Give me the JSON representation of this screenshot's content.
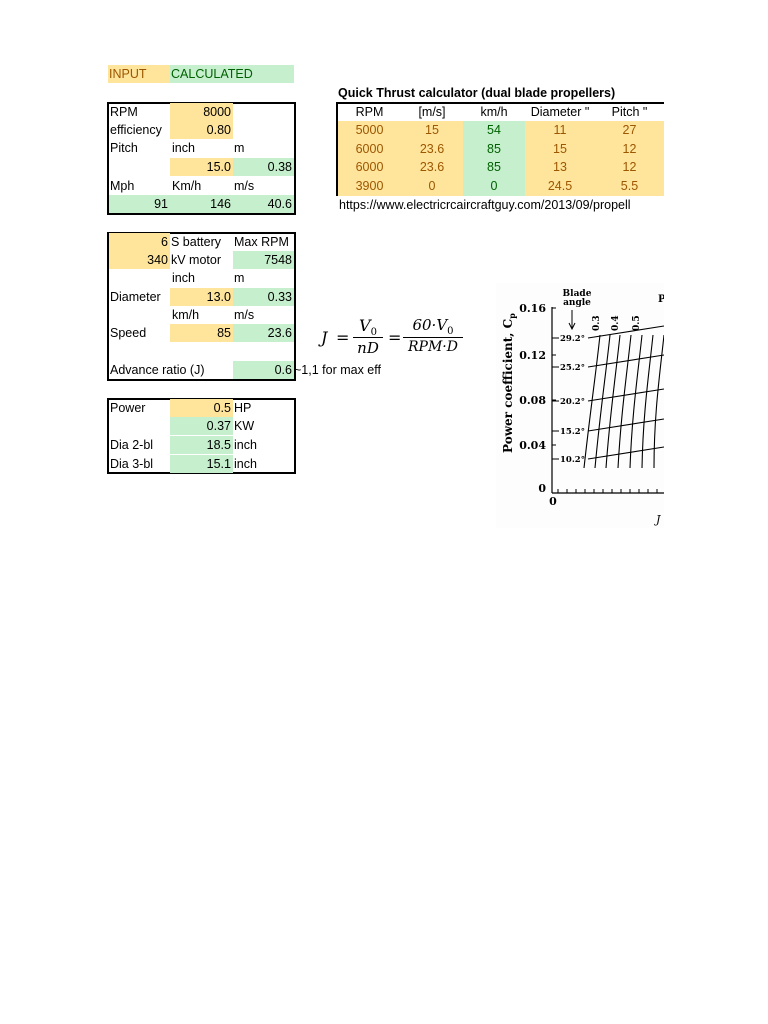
{
  "legend": {
    "input": "INPUT",
    "calculated": "CALCULATED"
  },
  "box1": {
    "rpm_label": "RPM",
    "rpm_value": "8000",
    "eff_label": "efficiency",
    "eff_value": "0.80",
    "pitch_label": "Pitch",
    "inch_label": "inch",
    "m_label": "m",
    "pitch_inch": "15.0",
    "pitch_m": "0.38",
    "mph_label": "Mph",
    "kmh_label": "Km/h",
    "ms_label": "m/s",
    "mph_value": "91",
    "kmh_value": "146",
    "ms_value": "40.6"
  },
  "box2": {
    "battery_value": "6",
    "battery_label": "S battery",
    "maxrpm_label": "Max RPM",
    "kv_value": "340",
    "kv_label": "kV motor",
    "maxrpm_value": "7548",
    "inch_label": "inch",
    "m_label": "m",
    "dia_label": "Diameter",
    "dia_inch": "13.0",
    "dia_m": "0.33",
    "kmh_label": "km/h",
    "ms_label": "m/s",
    "speed_label": "Speed",
    "speed_kmh": "85",
    "speed_ms": "23.6",
    "adv_label": "Advance ratio (J)",
    "adv_value": "0.6",
    "adv_note": "~1,1 for max eff"
  },
  "box3": {
    "power_label": "Power",
    "power_hp": "0.5",
    "hp_label": "HP",
    "power_kw": "0.37",
    "kw_label": "KW",
    "dia2_label": "Dia 2-bl",
    "dia2_value": "18.5",
    "dia2_unit": "inch",
    "dia3_label": "Dia 3-bl",
    "dia3_value": "15.1",
    "dia3_unit": "inch"
  },
  "thrust": {
    "title": "Quick Thrust calculator (dual blade propellers)",
    "headers": [
      "RPM",
      "[m/s]",
      "km/h",
      "Diameter \"",
      "Pitch \""
    ],
    "rows": [
      [
        "5000",
        "15",
        "54",
        "11",
        "27"
      ],
      [
        "6000",
        "23.6",
        "85",
        "15",
        "12"
      ],
      [
        "6000",
        "23.6",
        "85",
        "13",
        "12"
      ],
      [
        "3900",
        "0",
        "0",
        "24.5",
        "5.5"
      ]
    ],
    "url": "https://www.electricrcaircraftguy.com/2013/09/propell"
  },
  "formula": {
    "j": "J",
    "eq": "=",
    "v0": "V",
    "sub0": "0",
    "nD": "nD",
    "num2": "60·V",
    "den2": "RPM·D"
  },
  "figure": {
    "blade": "Blade",
    "angle": "angle",
    "ylabel": "Power coefficient, C",
    "ylabel_sub": "p",
    "yticks": [
      "0.16",
      "0.12",
      "0.08",
      "0.04",
      "0"
    ],
    "xtick0": "0",
    "angles": [
      "29.2°",
      "25.2°",
      "20.2°",
      "15.2°",
      "10.2°"
    ],
    "jvals": [
      "0.3",
      "0.4",
      "0.5"
    ],
    "p_top": "P",
    "x_axis_hint": "J"
  }
}
